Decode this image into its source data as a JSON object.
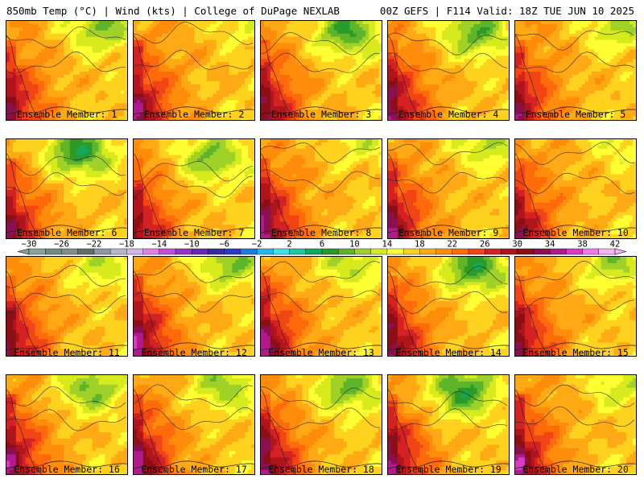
{
  "header": {
    "left": "850mb Temp (°C) | Wind (kts) | College of DuPage NEXLAB",
    "right": "00Z GEFS | F114 Valid: 18Z TUE JUN 10 2025"
  },
  "members": [
    "Ensemble Member: 1",
    "Ensemble Member: 2",
    "Ensemble Member: 3",
    "Ensemble Member: 4",
    "Ensemble Member: 5",
    "Ensemble Member: 6",
    "Ensemble Member: 7",
    "Ensemble Member: 8",
    "Ensemble Member: 9",
    "Ensemble Member: 10",
    "Ensemble Member: 11",
    "Ensemble Member: 12",
    "Ensemble Member: 13",
    "Ensemble Member: 14",
    "Ensemble Member: 15",
    "Ensemble Member: 16",
    "Ensemble Member: 17",
    "Ensemble Member: 18",
    "Ensemble Member: 19",
    "Ensemble Member: 20"
  ],
  "chart_data": {
    "type": "heatmap",
    "variable": "850mb Temp (°C)",
    "colorbar": {
      "tick_labels": [
        "−30",
        "−26",
        "−22",
        "−18",
        "−14",
        "−10",
        "−6",
        "−2",
        "2",
        "6",
        "10",
        "14",
        "18",
        "22",
        "26",
        "30",
        "34",
        "38",
        "42"
      ],
      "bins": [
        {
          "min": -30,
          "max": -28,
          "color": "#8aa39a"
        },
        {
          "min": -28,
          "max": -26,
          "color": "#6f8c84"
        },
        {
          "min": -26,
          "max": -24,
          "color": "#7f8f86"
        },
        {
          "min": -24,
          "max": -22,
          "color": "#5e6f69"
        },
        {
          "min": -22,
          "max": -20,
          "color": "#8c99a3"
        },
        {
          "min": -20,
          "max": -18,
          "color": "#b3b9c9"
        },
        {
          "min": -18,
          "max": -16,
          "color": "#d6b6e8"
        },
        {
          "min": -16,
          "max": -14,
          "color": "#e27ee8"
        },
        {
          "min": -14,
          "max": -12,
          "color": "#c64dd8"
        },
        {
          "min": -12,
          "max": -10,
          "color": "#9a2fc7"
        },
        {
          "min": -10,
          "max": -8,
          "color": "#6b26b5"
        },
        {
          "min": -8,
          "max": -6,
          "color": "#3b2a9e"
        },
        {
          "min": -6,
          "max": -4,
          "color": "#2838c9"
        },
        {
          "min": -4,
          "max": -2,
          "color": "#1e7be0"
        },
        {
          "min": -2,
          "max": 0,
          "color": "#22b8ee"
        },
        {
          "min": 0,
          "max": 2,
          "color": "#3fe0e8"
        },
        {
          "min": 2,
          "max": 4,
          "color": "#1fc79e"
        },
        {
          "min": 4,
          "max": 6,
          "color": "#14a85e"
        },
        {
          "min": 6,
          "max": 8,
          "color": "#2a9a2a"
        },
        {
          "min": 8,
          "max": 10,
          "color": "#5fb52a"
        },
        {
          "min": 10,
          "max": 12,
          "color": "#9fd128"
        },
        {
          "min": 12,
          "max": 14,
          "color": "#d6ea1e"
        },
        {
          "min": 14,
          "max": 16,
          "color": "#ffff33"
        },
        {
          "min": 16,
          "max": 18,
          "color": "#ffd21f"
        },
        {
          "min": 18,
          "max": 20,
          "color": "#ffaa14"
        },
        {
          "min": 20,
          "max": 22,
          "color": "#ff8c0a"
        },
        {
          "min": 22,
          "max": 24,
          "color": "#ff6a0a"
        },
        {
          "min": 24,
          "max": 26,
          "color": "#f24514"
        },
        {
          "min": 26,
          "max": 28,
          "color": "#d42222"
        },
        {
          "min": 28,
          "max": 30,
          "color": "#b0151c"
        },
        {
          "min": 30,
          "max": 32,
          "color": "#8c0f16"
        },
        {
          "min": 32,
          "max": 34,
          "color": "#8a1050"
        },
        {
          "min": 34,
          "max": 36,
          "color": "#b01a8c"
        },
        {
          "min": 36,
          "max": 38,
          "color": "#d83cc4"
        },
        {
          "min": 38,
          "max": 40,
          "color": "#f27ae8"
        },
        {
          "min": 40,
          "max": 42,
          "color": "#f8b4f0"
        }
      ]
    },
    "panels": [
      {
        "title": "Ensemble Member: 1",
        "cool_center": [
          0.78,
          0.05
        ],
        "cool_strength": 1.0,
        "hot_strength": 1.0
      },
      {
        "title": "Ensemble Member: 2",
        "cool_center": [
          0.9,
          0.0
        ],
        "cool_strength": 0.5,
        "hot_strength": 1.1
      },
      {
        "title": "Ensemble Member: 3",
        "cool_center": [
          0.72,
          0.1
        ],
        "cool_strength": 1.2,
        "hot_strength": 1.05
      },
      {
        "title": "Ensemble Member: 4",
        "cool_center": [
          0.72,
          0.1
        ],
        "cool_strength": 1.1,
        "hot_strength": 1.15
      },
      {
        "title": "Ensemble Member: 5",
        "cool_center": [
          0.85,
          0.05
        ],
        "cool_strength": 0.8,
        "hot_strength": 1.0
      },
      {
        "title": "Ensemble Member: 6",
        "cool_center": [
          0.6,
          0.12
        ],
        "cool_strength": 1.35,
        "hot_strength": 1.0
      },
      {
        "title": "Ensemble Member: 7",
        "cool_center": [
          0.65,
          0.18
        ],
        "cool_strength": 1.0,
        "hot_strength": 0.95
      },
      {
        "title": "Ensemble Member: 8",
        "cool_center": [
          0.85,
          0.0
        ],
        "cool_strength": 0.6,
        "hot_strength": 1.2
      },
      {
        "title": "Ensemble Member: 9",
        "cool_center": [
          0.82,
          0.02
        ],
        "cool_strength": 0.85,
        "hot_strength": 1.1
      },
      {
        "title": "Ensemble Member: 10",
        "cool_center": [
          0.88,
          0.02
        ],
        "cool_strength": 0.55,
        "hot_strength": 1.0
      },
      {
        "title": "Ensemble Member: 11",
        "cool_center": [
          0.78,
          0.08
        ],
        "cool_strength": 0.7,
        "hot_strength": 1.05
      },
      {
        "title": "Ensemble Member: 12",
        "cool_center": [
          0.8,
          0.05
        ],
        "cool_strength": 1.0,
        "hot_strength": 1.25
      },
      {
        "title": "Ensemble Member: 13",
        "cool_center": [
          0.75,
          0.05
        ],
        "cool_strength": 0.8,
        "hot_strength": 1.2
      },
      {
        "title": "Ensemble Member: 14",
        "cool_center": [
          0.72,
          0.1
        ],
        "cool_strength": 1.3,
        "hot_strength": 1.1
      },
      {
        "title": "Ensemble Member: 15",
        "cool_center": [
          0.82,
          0.05
        ],
        "cool_strength": 0.85,
        "hot_strength": 1.05
      },
      {
        "title": "Ensemble Member: 16",
        "cool_center": [
          0.7,
          0.12
        ],
        "cool_strength": 1.0,
        "hot_strength": 1.15
      },
      {
        "title": "Ensemble Member: 17",
        "cool_center": [
          0.75,
          0.1
        ],
        "cool_strength": 0.9,
        "hot_strength": 1.2
      },
      {
        "title": "Ensemble Member: 18",
        "cool_center": [
          0.72,
          0.12
        ],
        "cool_strength": 1.05,
        "hot_strength": 1.2
      },
      {
        "title": "Ensemble Member: 19",
        "cool_center": [
          0.62,
          0.15
        ],
        "cool_strength": 1.3,
        "hot_strength": 1.15
      },
      {
        "title": "Ensemble Member: 20",
        "cool_center": [
          0.88,
          0.08
        ],
        "cool_strength": 0.7,
        "hot_strength": 1.2
      }
    ]
  }
}
